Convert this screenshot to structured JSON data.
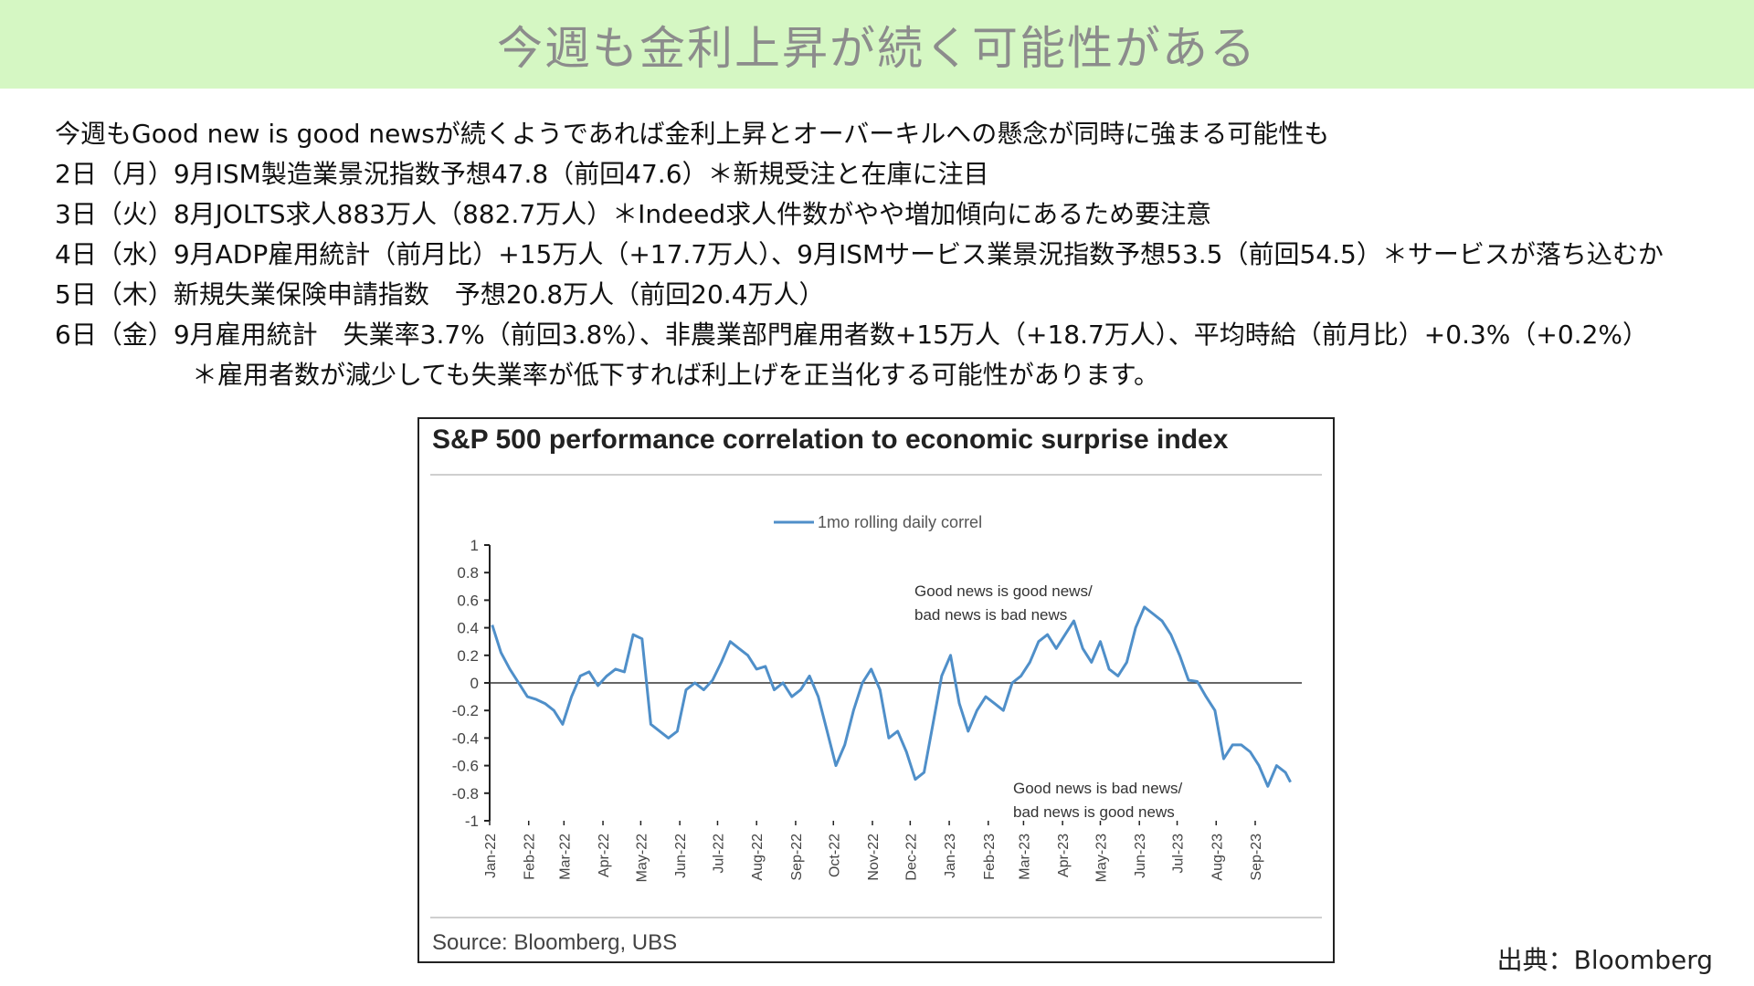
{
  "banner": {
    "title": "今週も金利上昇が続く可能性がある"
  },
  "notes": {
    "lines": [
      "今週もGood new is good newsが続くようであれば金利上昇とオーバーキルへの懸念が同時に強まる可能性も",
      "2日（月）9月ISM製造業景況指数予想47.8（前回47.6）＊新規受注と在庫に注目",
      "3日（火）8月JOLTS求人883万人（882.7万人）＊Indeed求人件数がやや増加傾向にあるため要注意",
      "4日（水）9月ADP雇用統計（前月比）+15万人（+17.7万人）、9月ISMサービス業景況指数予想53.5（前回54.5）＊サービスが落ち込むか",
      "5日（木）新規失業保険申請指数　予想20.8万人（前回20.4万人）",
      "6日（金）9月雇用統計　失業率3.7%（前回3.8%）、非農業部門雇用者数+15万人（+18.7万人）、平均時給（前月比）+0.3%（+0.2%）",
      "＊雇用者数が減少しても失業率が低下すれば利上げを正当化する可能性があります。"
    ]
  },
  "credit": "出典：Bloomberg",
  "chart_data": {
    "type": "line",
    "title": "S&P 500 performance correlation to economic surprise index",
    "source": "Source: Bloomberg, UBS",
    "xlabel": "",
    "ylabel": "",
    "ylim": [
      -1,
      1
    ],
    "yticks": [
      1,
      0.8,
      0.6,
      0.4,
      0.2,
      0,
      -0.2,
      -0.4,
      -0.6,
      -0.8,
      -1
    ],
    "ytick_labels": [
      "1",
      "0.8",
      "0.6",
      "0.4",
      "0.2",
      "0",
      "-0.2",
      "-0.4",
      "-0.6",
      "-0.8",
      "-1"
    ],
    "x_tick_labels": [
      "Jan-22",
      "Feb-22",
      "Mar-22",
      "Apr-22",
      "May-22",
      "Jun-22",
      "Jul-22",
      "Aug-22",
      "Sep-22",
      "Oct-22",
      "Nov-22",
      "Dec-22",
      "Jan-23",
      "Feb-23",
      "Mar-23",
      "Apr-23",
      "May-23",
      "Jun-23",
      "Jul-23",
      "Aug-23",
      "Sep-23"
    ],
    "legend_position": "top-center",
    "color": "#4f8fc9",
    "annotations": [
      {
        "lines": [
          "Good news is good news/",
          "bad news is bad news"
        ],
        "x": "Jan-23",
        "y": 0.65
      },
      {
        "lines": [
          "Good news is bad news/",
          "bad news is good news"
        ],
        "x": "Jun-23",
        "y": -0.8
      }
    ],
    "series": [
      {
        "name": "1mo rolling daily correl",
        "x": [
          "2022-01-03",
          "2022-01-10",
          "2022-01-17",
          "2022-01-24",
          "2022-01-31",
          "2022-02-07",
          "2022-02-14",
          "2022-02-21",
          "2022-02-28",
          "2022-03-07",
          "2022-03-14",
          "2022-03-21",
          "2022-03-28",
          "2022-04-04",
          "2022-04-11",
          "2022-04-18",
          "2022-04-25",
          "2022-05-02",
          "2022-05-09",
          "2022-05-16",
          "2022-05-23",
          "2022-05-30",
          "2022-06-06",
          "2022-06-13",
          "2022-06-20",
          "2022-06-27",
          "2022-07-04",
          "2022-07-11",
          "2022-07-18",
          "2022-07-25",
          "2022-08-01",
          "2022-08-08",
          "2022-08-15",
          "2022-08-22",
          "2022-08-29",
          "2022-09-05",
          "2022-09-12",
          "2022-09-19",
          "2022-09-26",
          "2022-10-03",
          "2022-10-10",
          "2022-10-17",
          "2022-10-24",
          "2022-10-31",
          "2022-11-07",
          "2022-11-14",
          "2022-11-21",
          "2022-11-28",
          "2022-12-05",
          "2022-12-12",
          "2022-12-19",
          "2022-12-26",
          "2023-01-02",
          "2023-01-09",
          "2023-01-16",
          "2023-01-23",
          "2023-01-30",
          "2023-02-06",
          "2023-02-13",
          "2023-02-20",
          "2023-02-27",
          "2023-03-06",
          "2023-03-13",
          "2023-03-20",
          "2023-03-27",
          "2023-04-03",
          "2023-04-10",
          "2023-04-17",
          "2023-04-24",
          "2023-05-01",
          "2023-05-08",
          "2023-05-15",
          "2023-05-22",
          "2023-05-29",
          "2023-06-05",
          "2023-06-12",
          "2023-06-19",
          "2023-06-26",
          "2023-07-03",
          "2023-07-10",
          "2023-07-17",
          "2023-07-24",
          "2023-07-31",
          "2023-08-07",
          "2023-08-14",
          "2023-08-21",
          "2023-08-28",
          "2023-09-04",
          "2023-09-11",
          "2023-09-18",
          "2023-09-25",
          "2023-09-29"
        ],
        "values": [
          0.42,
          0.22,
          0.1,
          0.0,
          -0.1,
          -0.12,
          -0.15,
          -0.2,
          -0.3,
          -0.1,
          0.05,
          0.08,
          -0.02,
          0.05,
          0.1,
          0.08,
          0.35,
          0.32,
          -0.3,
          -0.35,
          -0.4,
          -0.35,
          -0.05,
          0.0,
          -0.05,
          0.02,
          0.15,
          0.3,
          0.25,
          0.2,
          0.1,
          0.12,
          -0.05,
          0.0,
          -0.1,
          -0.05,
          0.05,
          -0.1,
          -0.35,
          -0.6,
          -0.45,
          -0.2,
          0.0,
          0.1,
          -0.05,
          -0.4,
          -0.35,
          -0.5,
          -0.7,
          -0.65,
          -0.3,
          0.05,
          0.2,
          -0.15,
          -0.35,
          -0.2,
          -0.1,
          -0.15,
          -0.2,
          0.0,
          0.05,
          0.15,
          0.3,
          0.35,
          0.25,
          0.35,
          0.45,
          0.25,
          0.15,
          0.3,
          0.1,
          0.05,
          0.15,
          0.4,
          0.55,
          0.5,
          0.45,
          0.35,
          0.2,
          0.02,
          0.01,
          -0.1,
          -0.2,
          -0.55,
          -0.45,
          -0.45,
          -0.5,
          -0.6,
          -0.75,
          -0.6,
          -0.65,
          -0.72
        ]
      }
    ]
  }
}
